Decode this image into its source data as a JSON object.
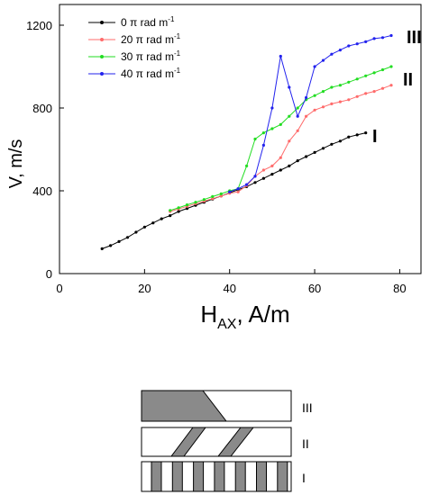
{
  "chart_data": {
    "type": "line",
    "xlabel_main": "H",
    "xlabel_sub": "AX",
    "xlabel_unit": ", A/m",
    "ylabel": "V, m/s",
    "xlim": [
      0,
      85
    ],
    "ylim": [
      0,
      1300
    ],
    "xticks": [
      "0",
      "20",
      "40",
      "60",
      "80"
    ],
    "yticks": [
      "0",
      "400",
      "800",
      "1200"
    ],
    "grid": false,
    "legend_position": "top-left",
    "series": [
      {
        "name_prefix": "0 π rad m",
        "name_sup": "-1",
        "color": "#000000",
        "x": [
          10,
          12,
          14,
          16,
          18,
          20,
          22,
          24,
          26,
          28,
          30,
          32,
          34,
          36,
          38,
          40,
          42,
          44,
          46,
          48,
          50,
          52,
          54,
          56,
          58,
          60,
          62,
          64,
          66,
          68,
          70,
          72
        ],
        "y": [
          120,
          135,
          155,
          175,
          200,
          225,
          245,
          265,
          280,
          300,
          315,
          330,
          345,
          360,
          375,
          390,
          405,
          420,
          440,
          460,
          480,
          500,
          520,
          545,
          565,
          585,
          605,
          625,
          640,
          660,
          670,
          680
        ]
      },
      {
        "name_prefix": "20 π rad m",
        "name_sup": "-1",
        "color": "#ff6b6b",
        "x": [
          26,
          28,
          30,
          32,
          34,
          36,
          38,
          40,
          42,
          44,
          46,
          48,
          50,
          52,
          54,
          56,
          58,
          60,
          62,
          64,
          66,
          68,
          70,
          72,
          74,
          76,
          78
        ],
        "y": [
          300,
          312,
          325,
          338,
          350,
          362,
          375,
          388,
          395,
          425,
          470,
          500,
          520,
          560,
          640,
          690,
          760,
          790,
          805,
          820,
          830,
          840,
          855,
          870,
          880,
          895,
          910
        ]
      },
      {
        "name_prefix": "30 π rad m",
        "name_sup": "-1",
        "color": "#22dd22",
        "x": [
          26,
          28,
          30,
          32,
          34,
          36,
          38,
          40,
          42,
          44,
          46,
          48,
          50,
          52,
          54,
          56,
          58,
          60,
          62,
          64,
          66,
          68,
          70,
          72,
          74,
          76,
          78
        ],
        "y": [
          305,
          318,
          332,
          345,
          358,
          372,
          385,
          400,
          410,
          520,
          650,
          680,
          700,
          720,
          760,
          800,
          840,
          860,
          880,
          900,
          910,
          925,
          940,
          955,
          970,
          985,
          1000
        ]
      },
      {
        "name_prefix": "40 π rad m",
        "name_sup": "-1",
        "color": "#2222ee",
        "x": [
          40,
          42,
          44,
          46,
          48,
          50,
          52,
          54,
          56,
          58,
          60,
          62,
          64,
          66,
          68,
          70,
          72,
          74,
          76,
          78
        ],
        "y": [
          395,
          410,
          430,
          470,
          620,
          800,
          1050,
          900,
          760,
          850,
          1000,
          1030,
          1060,
          1080,
          1100,
          1110,
          1120,
          1135,
          1140,
          1150
        ]
      }
    ],
    "curve_labels": [
      "I",
      "II",
      "III"
    ]
  },
  "domain_diagram": {
    "rows": [
      {
        "label": "III",
        "pattern": "single-tilted-block"
      },
      {
        "label": "II",
        "pattern": "two-tilted-stripes"
      },
      {
        "label": "I",
        "pattern": "periodic-vertical-stripes"
      }
    ],
    "fill_color": "#8a8a8a"
  }
}
